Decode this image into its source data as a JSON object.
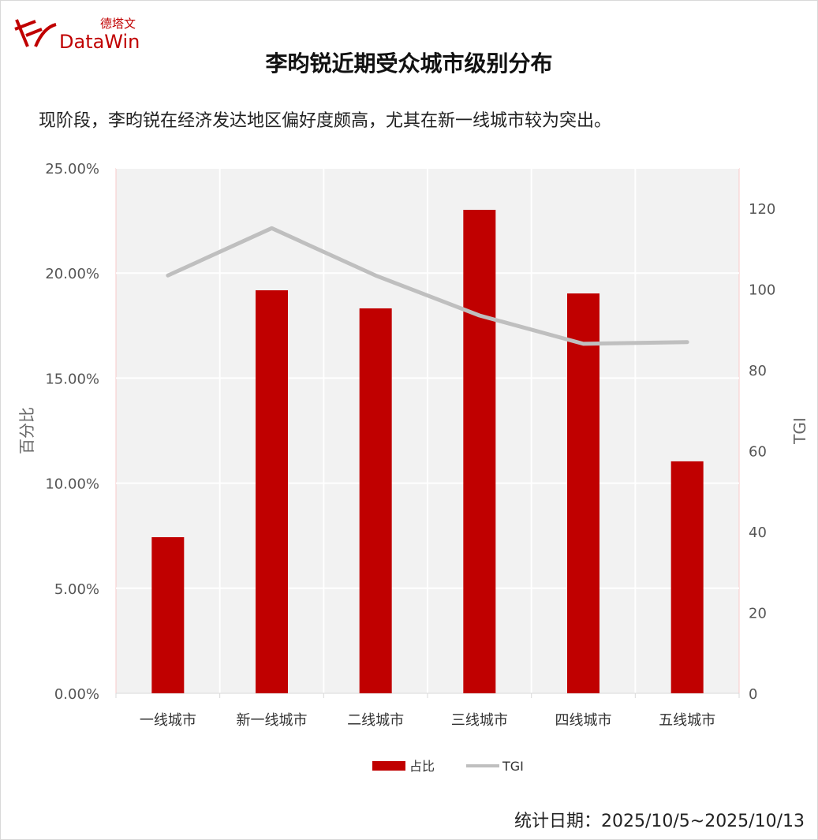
{
  "logo": {
    "cn": "德塔文",
    "en": "DataWin"
  },
  "title": "李昀锐近期受众城市级别分布",
  "subtitle": "现阶段，李昀锐在经济发达地区偏好度颇高，尤其在新一线城市较为突出。",
  "footer": "统计日期：2025/10/5~2025/10/13",
  "chart_data": {
    "type": "bar+line",
    "categories": [
      "一线城市",
      "新一线城市",
      "二线城市",
      "三线城市",
      "四线城市",
      "五线城市"
    ],
    "series": [
      {
        "name": "占比",
        "type": "bar",
        "axis": "left",
        "color": "#c00000",
        "values": [
          7.43,
          19.18,
          18.32,
          23.01,
          19.03,
          11.04
        ]
      },
      {
        "name": "TGI",
        "type": "line",
        "axis": "right",
        "color": "#bfbfbf",
        "values": [
          103.4,
          115.1,
          103.4,
          93.5,
          86.5,
          86.9
        ]
      }
    ],
    "ylabel": "百分比",
    "y2label": "TGI",
    "ylim": [
      0,
      25
    ],
    "y2lim": [
      0,
      130
    ],
    "yticks": [
      "0.00%",
      "5.00%",
      "10.00%",
      "15.00%",
      "20.00%",
      "25.00%"
    ],
    "y2ticks": [
      "0",
      "20",
      "40",
      "60",
      "80",
      "100",
      "120"
    ],
    "grid": true,
    "legend": "bottom"
  }
}
